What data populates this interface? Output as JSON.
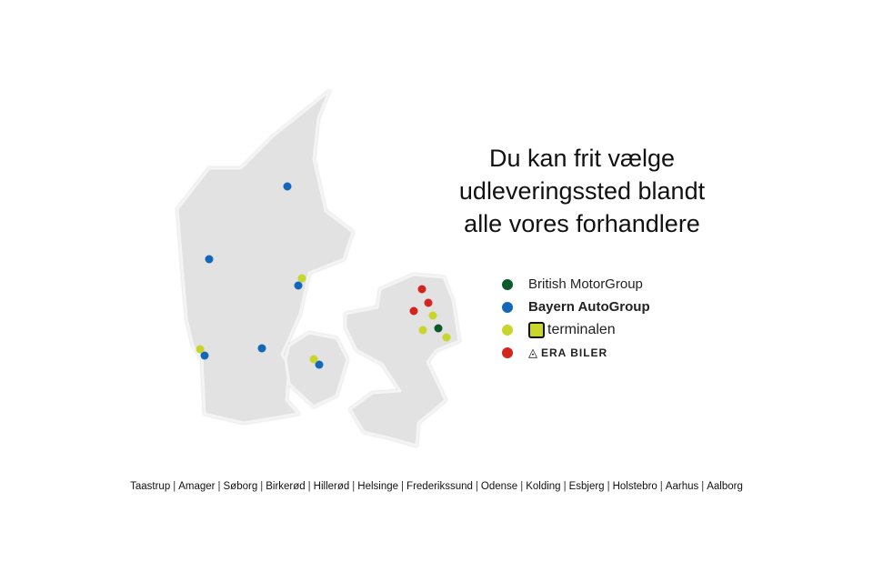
{
  "headline": [
    "Du kan frit vælge",
    "udleveringssted blandt",
    "alle vores forhandlere"
  ],
  "legend": [
    {
      "label": "British MotorGroup",
      "color": "#0b5a2a",
      "logo": "text"
    },
    {
      "label": "Bayern AutoGroup",
      "color": "#1466b8",
      "logo": "text-bold"
    },
    {
      "label": "terminalen",
      "color": "#c8d62b",
      "logo": "terminalen-logo"
    },
    {
      "label": "ERA BILER",
      "color": "#d4261d",
      "logo": "era-triangle-logo"
    }
  ],
  "cities": [
    "Taastrup",
    "Amager",
    "Søborg",
    "Birkerød",
    "Hillerød",
    "Helsinge",
    "Frederikssund",
    "Odense",
    "Kolding",
    "Esbjerg",
    "Holstebro",
    "Aarhus",
    "Aalborg"
  ],
  "map": {
    "land_color": "#e3e3e3",
    "outline_color": "#ffffff"
  }
}
